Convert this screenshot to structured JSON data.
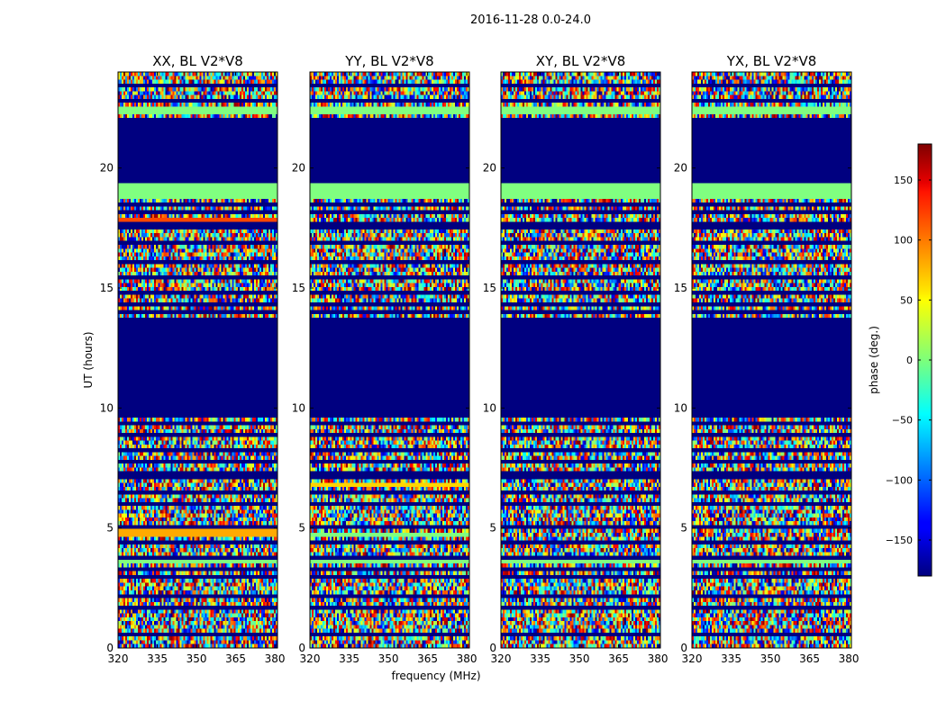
{
  "chart_data": {
    "type": "heatmap",
    "suptitle": "2016-11-28 0.0-24.0",
    "xlabel": "frequency (MHz)",
    "ylabel": "UT (hours)",
    "colorbar_label": "phase (deg.)",
    "xlim": [
      320,
      381
    ],
    "ylim": [
      0,
      24
    ],
    "x_ticks": [
      320,
      335,
      350,
      365,
      380
    ],
    "y_ticks": [
      0,
      5,
      10,
      15,
      20
    ],
    "clim": [
      -180,
      180
    ],
    "colorbar_ticks": [
      150,
      100,
      50,
      0,
      -50,
      -100,
      -150
    ],
    "colorbar_tick_labels": [
      "150",
      "100",
      "50",
      "0",
      "−50",
      "−100",
      "−150"
    ],
    "colormap": "jet",
    "flagged_value": -180,
    "panels": [
      {
        "title": "XX, BL V2*V8",
        "flagged_bands": [
          [
            9.6,
            13.7
          ],
          [
            19.4,
            22.1
          ]
        ],
        "constant_bands": [
          {
            "t0": 18.7,
            "t1": 19.3,
            "value": 0
          },
          {
            "t0": 22.3,
            "t1": 22.55,
            "value": 0
          },
          {
            "t0": 4.65,
            "t1": 4.9,
            "value": 75
          },
          {
            "t0": 17.75,
            "t1": 17.9,
            "value": 110
          },
          {
            "t0": 3.45,
            "t1": 3.65,
            "value": 0
          }
        ]
      },
      {
        "title": "YY, BL V2*V8",
        "flagged_bands": [
          [
            9.6,
            13.7
          ],
          [
            19.4,
            22.1
          ]
        ],
        "constant_bands": [
          {
            "t0": 18.7,
            "t1": 19.3,
            "value": 0
          },
          {
            "t0": 22.3,
            "t1": 22.55,
            "value": 0
          },
          {
            "t0": 4.7,
            "t1": 4.85,
            "value": 0
          },
          {
            "t0": 6.75,
            "t1": 6.9,
            "value": 60
          },
          {
            "t0": 3.45,
            "t1": 3.65,
            "value": 0
          }
        ]
      },
      {
        "title": "XY, BL V2*V8",
        "flagged_bands": [
          [
            9.6,
            13.7
          ],
          [
            19.4,
            22.1
          ]
        ],
        "constant_bands": [
          {
            "t0": 18.7,
            "t1": 19.3,
            "value": 0
          },
          {
            "t0": 22.3,
            "t1": 22.55,
            "value": 0
          },
          {
            "t0": 3.45,
            "t1": 3.65,
            "value": 0
          }
        ]
      },
      {
        "title": "YX, BL V2*V8",
        "flagged_bands": [
          [
            9.6,
            13.7
          ],
          [
            19.4,
            22.1
          ]
        ],
        "constant_bands": [
          {
            "t0": 18.7,
            "t1": 19.3,
            "value": 0
          },
          {
            "t0": 22.3,
            "t1": 22.55,
            "value": 0
          },
          {
            "t0": 3.45,
            "t1": 3.65,
            "value": 0
          }
        ]
      }
    ],
    "flagged_rows_hours": [
      0.55,
      1.75,
      2.1,
      2.95,
      3.35,
      3.75,
      4.35,
      5.05,
      5.95,
      6.45,
      7.05,
      7.35,
      7.75,
      8.25,
      8.95,
      9.35,
      13.95,
      14.25,
      14.85,
      15.45,
      16.05,
      16.95,
      17.45,
      17.65,
      18.15,
      18.45,
      22.75,
      23.45
    ]
  }
}
